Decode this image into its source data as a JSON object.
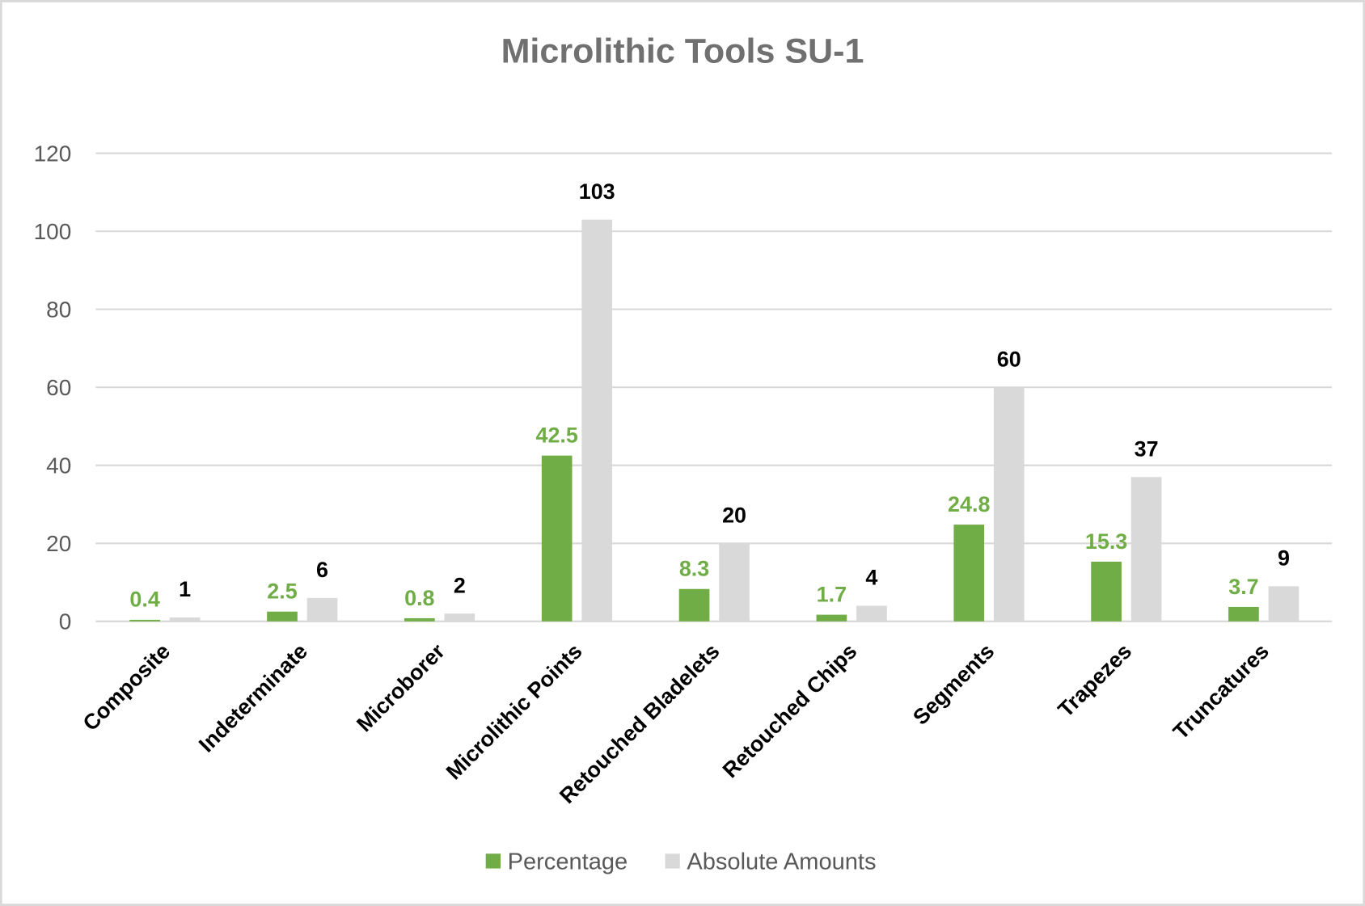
{
  "chart_data": {
    "type": "bar",
    "title": "Microlithic Tools SU-1",
    "categories": [
      "Composite",
      "Indeterminate",
      "Microborer",
      "Microlithic Points",
      "Retouched Bladelets",
      "Retouched Chips",
      "Segments",
      "Trapezes",
      "Truncatures"
    ],
    "series": [
      {
        "name": "Percentage",
        "color": "#70ad47",
        "label_color": "#70ad47",
        "values": [
          0.4,
          2.5,
          0.8,
          42.5,
          8.3,
          1.7,
          24.8,
          15.3,
          3.7
        ]
      },
      {
        "name": "Absolute Amounts",
        "color": "#d9d9d9",
        "label_color": "#000000",
        "values": [
          1,
          6,
          2,
          103,
          20,
          4,
          60,
          37,
          9
        ]
      }
    ],
    "ylim": [
      0,
      120
    ],
    "yticks": [
      0,
      20,
      40,
      60,
      80,
      100,
      120
    ],
    "grid": true,
    "legend": "bottom"
  }
}
